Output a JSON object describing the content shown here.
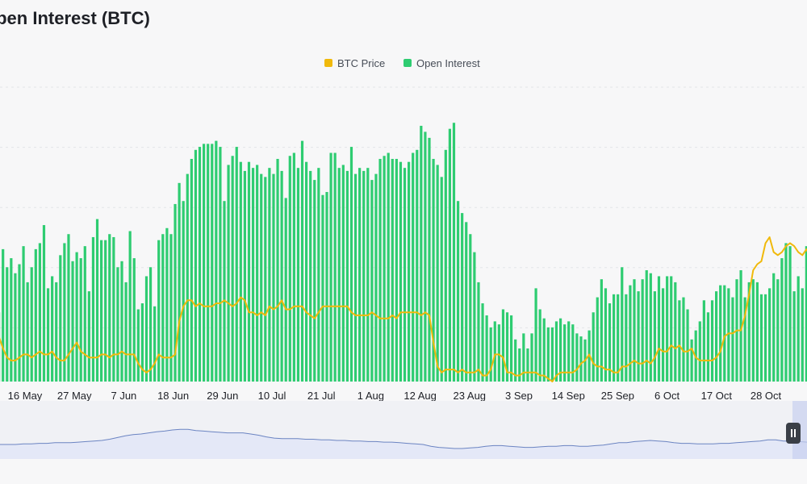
{
  "title": "Open Interest (BTC)",
  "colors": {
    "open_interest": "#2ecc71",
    "btc_price": "#f0b90b",
    "navigator_line": "#6b84c2",
    "navigator_fill": "#e4e8f7"
  },
  "chart_data": {
    "type": "bar",
    "legend": [
      "BTC Price",
      "Open Interest"
    ],
    "legend_position": "top-center",
    "grid": true,
    "x_ticks": [
      "16 May",
      "27 May",
      "7 Jun",
      "18 Jun",
      "29 Jun",
      "10 Jul",
      "21 Jul",
      "1 Aug",
      "12 Aug",
      "23 Aug",
      "3 Sep",
      "14 Sep",
      "25 Sep",
      "6 Oct",
      "17 Oct",
      "28 Oct"
    ],
    "ylim": [
      0,
      100
    ],
    "series": [
      {
        "name": "Open Interest",
        "type": "bar",
        "values": [
          23,
          44,
          38,
          41,
          36,
          39,
          45,
          33,
          38,
          44,
          46,
          52,
          31,
          35,
          33,
          42,
          46,
          49,
          40,
          43,
          41,
          45,
          30,
          48,
          54,
          47,
          47,
          49,
          48,
          38,
          40,
          33,
          50,
          41,
          24,
          26,
          35,
          38,
          25,
          47,
          49,
          51,
          49,
          59,
          66,
          60,
          69,
          74,
          77,
          78,
          79,
          79,
          79,
          80,
          78,
          60,
          72,
          75,
          78,
          73,
          70,
          73,
          71,
          72,
          69,
          68,
          71,
          69,
          74,
          70,
          61,
          75,
          76,
          71,
          80,
          73,
          70,
          67,
          71,
          62,
          63,
          76,
          76,
          71,
          72,
          70,
          78,
          69,
          71,
          70,
          71,
          67,
          69,
          74,
          75,
          76,
          74,
          74,
          73,
          71,
          73,
          76,
          77,
          85,
          83,
          81,
          74,
          72,
          68,
          77,
          84,
          86,
          60,
          56,
          53,
          49,
          43,
          33,
          26,
          22,
          18,
          20,
          19,
          24,
          23,
          22,
          14,
          11,
          16,
          11,
          16,
          31,
          24,
          21,
          18,
          18,
          20,
          21,
          19,
          20,
          19,
          16,
          15,
          14,
          17,
          23,
          28,
          34,
          31,
          26,
          29,
          29,
          38,
          29,
          32,
          34,
          30,
          34,
          37,
          36,
          30,
          35,
          31,
          35,
          35,
          33,
          27,
          28,
          24,
          14,
          17,
          20,
          27,
          23,
          27,
          30,
          32,
          32,
          31,
          28,
          34,
          37,
          28,
          33,
          34,
          33,
          29,
          29,
          31,
          36,
          34,
          41,
          46,
          45,
          30,
          35,
          31,
          45,
          41,
          32
        ],
        "color": "#2ecc71"
      },
      {
        "name": "BTC Price",
        "type": "line",
        "values": [
          15,
          11,
          8,
          7,
          7,
          8,
          9,
          9,
          8,
          9,
          10,
          9,
          9,
          10,
          8,
          7,
          7,
          9,
          11,
          13,
          10,
          9,
          8,
          8,
          8,
          9,
          9,
          8,
          9,
          9,
          10,
          9,
          9,
          9,
          6,
          4,
          3,
          4,
          6,
          9,
          8,
          8,
          8,
          9,
          20,
          25,
          27,
          27,
          25,
          26,
          25,
          25,
          25,
          26,
          26,
          27,
          26,
          25,
          26,
          28,
          27,
          23,
          23,
          22,
          23,
          22,
          25,
          24,
          25,
          27,
          24,
          24,
          25,
          25,
          25,
          23,
          22,
          21,
          23,
          25,
          25,
          25,
          25,
          25,
          25,
          25,
          23,
          22,
          22,
          22,
          22,
          23,
          22,
          21,
          21,
          21,
          22,
          21,
          23,
          23,
          23,
          23,
          23,
          22,
          23,
          22,
          13,
          5,
          3,
          4,
          4,
          4,
          3,
          4,
          3,
          3,
          3,
          4,
          2,
          2,
          4,
          9,
          9,
          8,
          3,
          3,
          2,
          2,
          3,
          3,
          3,
          3,
          2,
          2,
          1,
          0,
          2,
          3,
          3,
          3,
          3,
          4,
          6,
          7,
          9,
          6,
          5,
          5,
          4,
          4,
          3,
          3,
          5,
          5,
          6,
          7,
          6,
          6,
          7,
          6,
          8,
          11,
          10,
          10,
          12,
          11,
          12,
          10,
          10,
          11,
          8,
          7,
          7,
          7,
          7,
          8,
          10,
          15,
          16,
          16,
          17,
          17,
          22,
          29,
          37,
          39,
          40,
          46,
          48,
          43,
          42,
          43,
          45,
          46,
          45,
          43,
          42,
          44,
          41,
          41
        ],
        "color": "#f0b90b"
      }
    ]
  },
  "navigator": {
    "values": [
      25,
      25,
      25,
      26,
      26,
      27,
      27,
      28,
      28,
      28,
      29,
      30,
      31,
      32,
      34,
      37,
      40,
      42,
      43,
      45,
      47,
      48,
      50,
      51,
      51,
      49,
      48,
      47,
      46,
      45,
      45,
      45,
      43,
      41,
      38,
      36,
      35,
      35,
      35,
      34,
      34,
      33,
      33,
      32,
      32,
      31,
      31,
      30,
      30,
      29,
      29,
      28,
      27,
      26,
      25,
      22,
      20,
      19,
      18,
      18,
      19,
      20,
      22,
      23,
      23,
      22,
      21,
      20,
      20,
      21,
      22,
      22,
      23,
      23,
      22,
      22,
      23,
      24,
      26,
      28,
      28,
      30,
      31,
      32,
      31,
      30,
      28,
      27,
      27,
      26,
      26,
      26,
      27,
      27,
      28,
      29,
      30,
      31,
      33,
      33,
      31,
      31,
      30,
      29
    ]
  }
}
